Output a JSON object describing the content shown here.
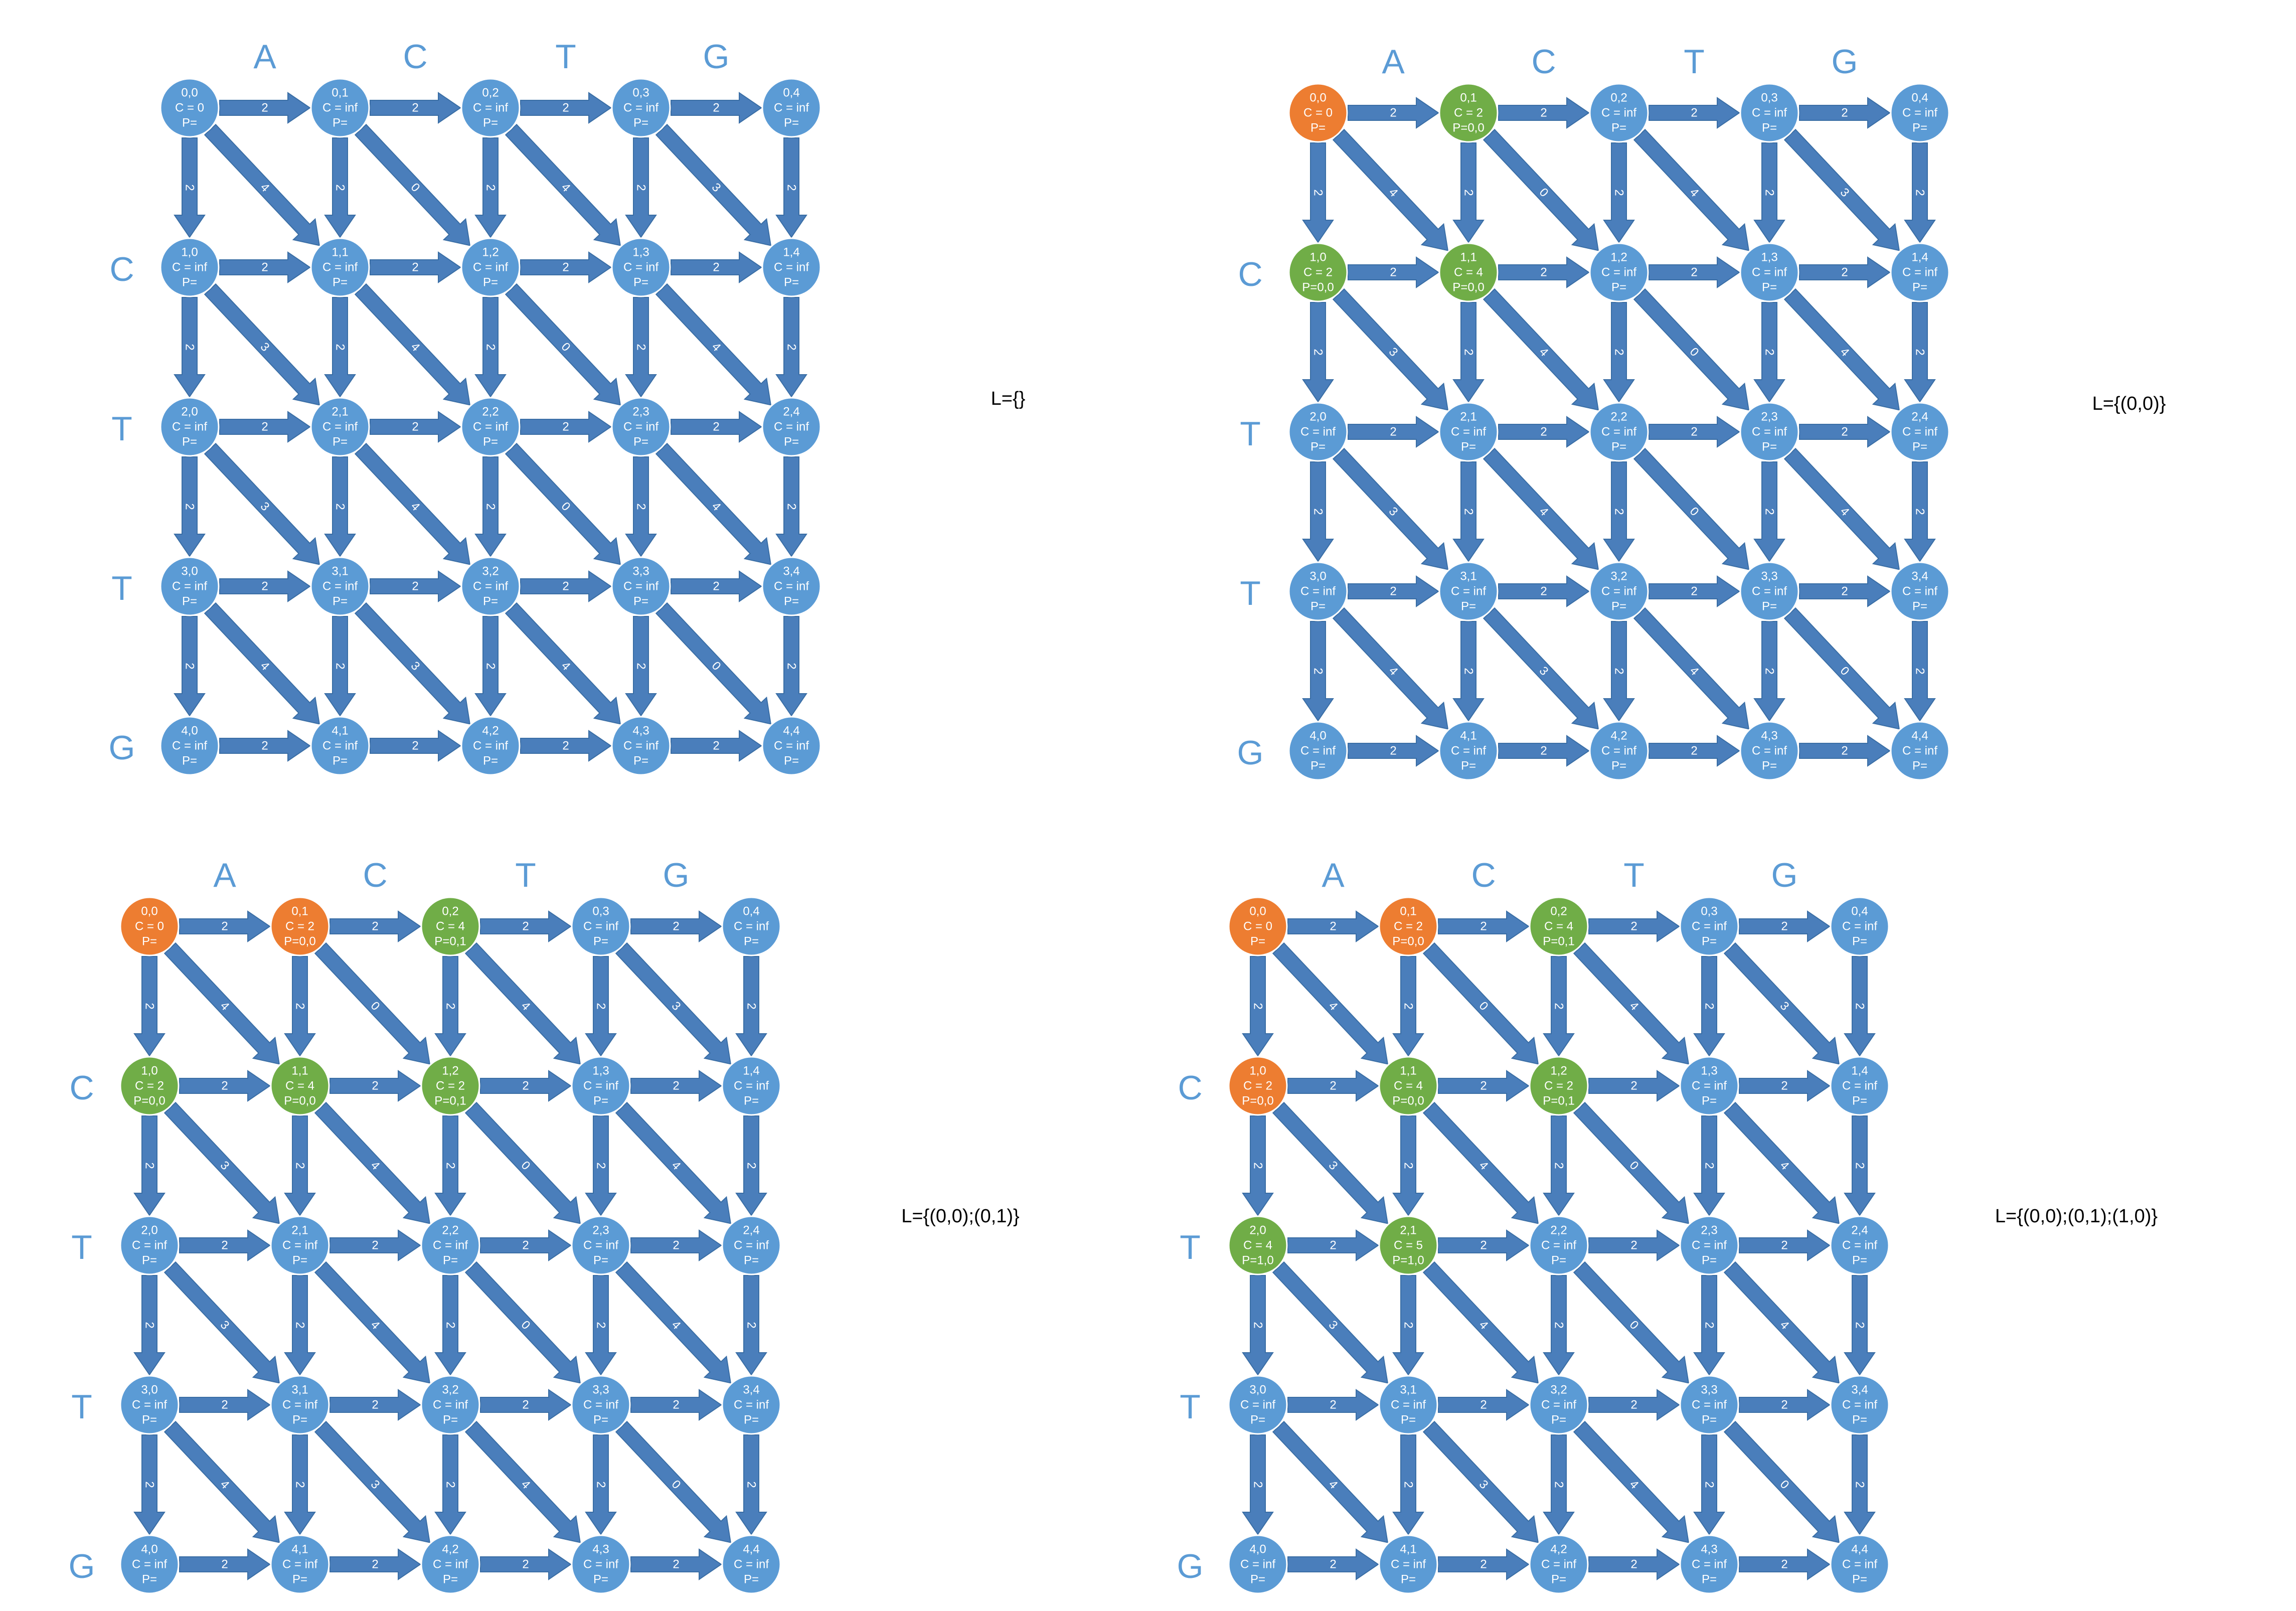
{
  "colors": {
    "edge": "#4a7ebb",
    "unvisited": "#5b9bd5",
    "visited": "#ed7d31",
    "frontier": "#70ad47",
    "label": "#5b9bd5",
    "text": "#ffffff"
  },
  "edges": {
    "horizontal_cost": "2",
    "vertical_cost": "2",
    "diagonal_costs": [
      [
        "4",
        "0",
        "4",
        "3"
      ],
      [
        "3",
        "4",
        "0",
        "4"
      ],
      [
        "3",
        "4",
        "0",
        "4"
      ],
      [
        "4",
        "3",
        "4",
        "0"
      ]
    ]
  },
  "panels": [
    {
      "top_sequence": [
        "A",
        "C",
        "T",
        "G"
      ],
      "left_sequence": [
        "C",
        "T",
        "T",
        "G"
      ],
      "list": "L={}",
      "nodes": [
        [
          {
            "id": "0,0",
            "cost": "C = 0",
            "pred": "P=",
            "state": "unvisited"
          },
          {
            "id": "0,1",
            "cost": "C = inf",
            "pred": "P=",
            "state": "unvisited"
          },
          {
            "id": "0,2",
            "cost": "C = inf",
            "pred": "P=",
            "state": "unvisited"
          },
          {
            "id": "0,3",
            "cost": "C = inf",
            "pred": "P=",
            "state": "unvisited"
          },
          {
            "id": "0,4",
            "cost": "C = inf",
            "pred": "P=",
            "state": "unvisited"
          }
        ],
        [
          {
            "id": "1,0",
            "cost": "C = inf",
            "pred": "P=",
            "state": "unvisited"
          },
          {
            "id": "1,1",
            "cost": "C = inf",
            "pred": "P=",
            "state": "unvisited"
          },
          {
            "id": "1,2",
            "cost": "C = inf",
            "pred": "P=",
            "state": "unvisited"
          },
          {
            "id": "1,3",
            "cost": "C = inf",
            "pred": "P=",
            "state": "unvisited"
          },
          {
            "id": "1,4",
            "cost": "C = inf",
            "pred": "P=",
            "state": "unvisited"
          }
        ],
        [
          {
            "id": "2,0",
            "cost": "C = inf",
            "pred": "P=",
            "state": "unvisited"
          },
          {
            "id": "2,1",
            "cost": "C = inf",
            "pred": "P=",
            "state": "unvisited"
          },
          {
            "id": "2,2",
            "cost": "C = inf",
            "pred": "P=",
            "state": "unvisited"
          },
          {
            "id": "2,3",
            "cost": "C = inf",
            "pred": "P=",
            "state": "unvisited"
          },
          {
            "id": "2,4",
            "cost": "C = inf",
            "pred": "P=",
            "state": "unvisited"
          }
        ],
        [
          {
            "id": "3,0",
            "cost": "C = inf",
            "pred": "P=",
            "state": "unvisited"
          },
          {
            "id": "3,1",
            "cost": "C = inf",
            "pred": "P=",
            "state": "unvisited"
          },
          {
            "id": "3,2",
            "cost": "C = inf",
            "pred": "P=",
            "state": "unvisited"
          },
          {
            "id": "3,3",
            "cost": "C = inf",
            "pred": "P=",
            "state": "unvisited"
          },
          {
            "id": "3,4",
            "cost": "C = inf",
            "pred": "P=",
            "state": "unvisited"
          }
        ],
        [
          {
            "id": "4,0",
            "cost": "C = inf",
            "pred": "P=",
            "state": "unvisited"
          },
          {
            "id": "4,1",
            "cost": "C = inf",
            "pred": "P=",
            "state": "unvisited"
          },
          {
            "id": "4,2",
            "cost": "C = inf",
            "pred": "P=",
            "state": "unvisited"
          },
          {
            "id": "4,3",
            "cost": "C = inf",
            "pred": "P=",
            "state": "unvisited"
          },
          {
            "id": "4,4",
            "cost": "C = inf",
            "pred": "P=",
            "state": "unvisited"
          }
        ]
      ]
    },
    {
      "top_sequence": [
        "A",
        "C",
        "T",
        "G"
      ],
      "left_sequence": [
        "C",
        "T",
        "T",
        "G"
      ],
      "list": "L={(0,0)}",
      "nodes": [
        [
          {
            "id": "0,0",
            "cost": "C = 0",
            "pred": "P=",
            "state": "visited"
          },
          {
            "id": "0,1",
            "cost": "C = 2",
            "pred": "P=0,0",
            "state": "frontier"
          },
          {
            "id": "0,2",
            "cost": "C = inf",
            "pred": "P=",
            "state": "unvisited"
          },
          {
            "id": "0,3",
            "cost": "C = inf",
            "pred": "P=",
            "state": "unvisited"
          },
          {
            "id": "0,4",
            "cost": "C = inf",
            "pred": "P=",
            "state": "unvisited"
          }
        ],
        [
          {
            "id": "1,0",
            "cost": "C = 2",
            "pred": "P=0,0",
            "state": "frontier"
          },
          {
            "id": "1,1",
            "cost": "C = 4",
            "pred": "P=0,0",
            "state": "frontier"
          },
          {
            "id": "1,2",
            "cost": "C = inf",
            "pred": "P=",
            "state": "unvisited"
          },
          {
            "id": "1,3",
            "cost": "C = inf",
            "pred": "P=",
            "state": "unvisited"
          },
          {
            "id": "1,4",
            "cost": "C = inf",
            "pred": "P=",
            "state": "unvisited"
          }
        ],
        [
          {
            "id": "2,0",
            "cost": "C = inf",
            "pred": "P=",
            "state": "unvisited"
          },
          {
            "id": "2,1",
            "cost": "C = inf",
            "pred": "P=",
            "state": "unvisited"
          },
          {
            "id": "2,2",
            "cost": "C = inf",
            "pred": "P=",
            "state": "unvisited"
          },
          {
            "id": "2,3",
            "cost": "C = inf",
            "pred": "P=",
            "state": "unvisited"
          },
          {
            "id": "2,4",
            "cost": "C = inf",
            "pred": "P=",
            "state": "unvisited"
          }
        ],
        [
          {
            "id": "3,0",
            "cost": "C = inf",
            "pred": "P=",
            "state": "unvisited"
          },
          {
            "id": "3,1",
            "cost": "C = inf",
            "pred": "P=",
            "state": "unvisited"
          },
          {
            "id": "3,2",
            "cost": "C = inf",
            "pred": "P=",
            "state": "unvisited"
          },
          {
            "id": "3,3",
            "cost": "C = inf",
            "pred": "P=",
            "state": "unvisited"
          },
          {
            "id": "3,4",
            "cost": "C = inf",
            "pred": "P=",
            "state": "unvisited"
          }
        ],
        [
          {
            "id": "4,0",
            "cost": "C = inf",
            "pred": "P=",
            "state": "unvisited"
          },
          {
            "id": "4,1",
            "cost": "C = inf",
            "pred": "P=",
            "state": "unvisited"
          },
          {
            "id": "4,2",
            "cost": "C = inf",
            "pred": "P=",
            "state": "unvisited"
          },
          {
            "id": "4,3",
            "cost": "C = inf",
            "pred": "P=",
            "state": "unvisited"
          },
          {
            "id": "4,4",
            "cost": "C = inf",
            "pred": "P=",
            "state": "unvisited"
          }
        ]
      ]
    },
    {
      "top_sequence": [
        "A",
        "C",
        "T",
        "G"
      ],
      "left_sequence": [
        "C",
        "T",
        "T",
        "G"
      ],
      "list": "L={(0,0);(0,1)}",
      "nodes": [
        [
          {
            "id": "0,0",
            "cost": "C = 0",
            "pred": "P=",
            "state": "visited"
          },
          {
            "id": "0,1",
            "cost": "C = 2",
            "pred": "P=0,0",
            "state": "visited"
          },
          {
            "id": "0,2",
            "cost": "C = 4",
            "pred": "P=0,1",
            "state": "frontier"
          },
          {
            "id": "0,3",
            "cost": "C = inf",
            "pred": "P=",
            "state": "unvisited"
          },
          {
            "id": "0,4",
            "cost": "C = inf",
            "pred": "P=",
            "state": "unvisited"
          }
        ],
        [
          {
            "id": "1,0",
            "cost": "C = 2",
            "pred": "P=0,0",
            "state": "frontier"
          },
          {
            "id": "1,1",
            "cost": "C = 4",
            "pred": "P=0,0",
            "state": "frontier"
          },
          {
            "id": "1,2",
            "cost": "C = 2",
            "pred": "P=0,1",
            "state": "frontier"
          },
          {
            "id": "1,3",
            "cost": "C = inf",
            "pred": "P=",
            "state": "unvisited"
          },
          {
            "id": "1,4",
            "cost": "C = inf",
            "pred": "P=",
            "state": "unvisited"
          }
        ],
        [
          {
            "id": "2,0",
            "cost": "C = inf",
            "pred": "P=",
            "state": "unvisited"
          },
          {
            "id": "2,1",
            "cost": "C = inf",
            "pred": "P=",
            "state": "unvisited"
          },
          {
            "id": "2,2",
            "cost": "C = inf",
            "pred": "P=",
            "state": "unvisited"
          },
          {
            "id": "2,3",
            "cost": "C = inf",
            "pred": "P=",
            "state": "unvisited"
          },
          {
            "id": "2,4",
            "cost": "C = inf",
            "pred": "P=",
            "state": "unvisited"
          }
        ],
        [
          {
            "id": "3,0",
            "cost": "C = inf",
            "pred": "P=",
            "state": "unvisited"
          },
          {
            "id": "3,1",
            "cost": "C = inf",
            "pred": "P=",
            "state": "unvisited"
          },
          {
            "id": "3,2",
            "cost": "C = inf",
            "pred": "P=",
            "state": "unvisited"
          },
          {
            "id": "3,3",
            "cost": "C = inf",
            "pred": "P=",
            "state": "unvisited"
          },
          {
            "id": "3,4",
            "cost": "C = inf",
            "pred": "P=",
            "state": "unvisited"
          }
        ],
        [
          {
            "id": "4,0",
            "cost": "C = inf",
            "pred": "P=",
            "state": "unvisited"
          },
          {
            "id": "4,1",
            "cost": "C = inf",
            "pred": "P=",
            "state": "unvisited"
          },
          {
            "id": "4,2",
            "cost": "C = inf",
            "pred": "P=",
            "state": "unvisited"
          },
          {
            "id": "4,3",
            "cost": "C = inf",
            "pred": "P=",
            "state": "unvisited"
          },
          {
            "id": "4,4",
            "cost": "C = inf",
            "pred": "P=",
            "state": "unvisited"
          }
        ]
      ]
    },
    {
      "top_sequence": [
        "A",
        "C",
        "T",
        "G"
      ],
      "left_sequence": [
        "C",
        "T",
        "T",
        "G"
      ],
      "list": "L={(0,0);(0,1);(1,0)}",
      "nodes": [
        [
          {
            "id": "0,0",
            "cost": "C = 0",
            "pred": "P=",
            "state": "visited"
          },
          {
            "id": "0,1",
            "cost": "C = 2",
            "pred": "P=0,0",
            "state": "visited"
          },
          {
            "id": "0,2",
            "cost": "C = 4",
            "pred": "P=0,1",
            "state": "frontier"
          },
          {
            "id": "0,3",
            "cost": "C = inf",
            "pred": "P=",
            "state": "unvisited"
          },
          {
            "id": "0,4",
            "cost": "C = inf",
            "pred": "P=",
            "state": "unvisited"
          }
        ],
        [
          {
            "id": "1,0",
            "cost": "C = 2",
            "pred": "P=0,0",
            "state": "visited"
          },
          {
            "id": "1,1",
            "cost": "C = 4",
            "pred": "P=0,0",
            "state": "frontier"
          },
          {
            "id": "1,2",
            "cost": "C = 2",
            "pred": "P=0,1",
            "state": "frontier"
          },
          {
            "id": "1,3",
            "cost": "C = inf",
            "pred": "P=",
            "state": "unvisited"
          },
          {
            "id": "1,4",
            "cost": "C = inf",
            "pred": "P=",
            "state": "unvisited"
          }
        ],
        [
          {
            "id": "2,0",
            "cost": "C = 4",
            "pred": "P=1,0",
            "state": "frontier"
          },
          {
            "id": "2,1",
            "cost": "C = 5",
            "pred": "P=1,0",
            "state": "frontier"
          },
          {
            "id": "2,2",
            "cost": "C = inf",
            "pred": "P=",
            "state": "unvisited"
          },
          {
            "id": "2,3",
            "cost": "C = inf",
            "pred": "P=",
            "state": "unvisited"
          },
          {
            "id": "2,4",
            "cost": "C = inf",
            "pred": "P=",
            "state": "unvisited"
          }
        ],
        [
          {
            "id": "3,0",
            "cost": "C = inf",
            "pred": "P=",
            "state": "unvisited"
          },
          {
            "id": "3,1",
            "cost": "C = inf",
            "pred": "P=",
            "state": "unvisited"
          },
          {
            "id": "3,2",
            "cost": "C = inf",
            "pred": "P=",
            "state": "unvisited"
          },
          {
            "id": "3,3",
            "cost": "C = inf",
            "pred": "P=",
            "state": "unvisited"
          },
          {
            "id": "3,4",
            "cost": "C = inf",
            "pred": "P=",
            "state": "unvisited"
          }
        ],
        [
          {
            "id": "4,0",
            "cost": "C = inf",
            "pred": "P=",
            "state": "unvisited"
          },
          {
            "id": "4,1",
            "cost": "C = inf",
            "pred": "P=",
            "state": "unvisited"
          },
          {
            "id": "4,2",
            "cost": "C = inf",
            "pred": "P=",
            "state": "unvisited"
          },
          {
            "id": "4,3",
            "cost": "C = inf",
            "pred": "P=",
            "state": "unvisited"
          },
          {
            "id": "4,4",
            "cost": "C = inf",
            "pred": "P=",
            "state": "unvisited"
          }
        ]
      ]
    }
  ]
}
